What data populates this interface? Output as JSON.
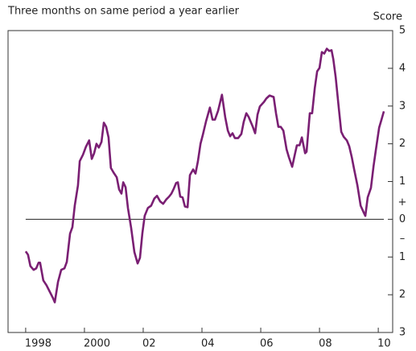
{
  "chart_data": {
    "type": "line",
    "title": "Three months on same period a year earlier",
    "y_axis_label": "Score",
    "annotations": [
      "+",
      "–"
    ],
    "xlim": [
      1997.4,
      2010.49
    ],
    "xticks": [
      {
        "value": 1998,
        "label": "1998"
      },
      {
        "value": 2000,
        "label": "2000"
      },
      {
        "value": 2002,
        "label": "02"
      },
      {
        "value": 2004,
        "label": "04"
      },
      {
        "value": 2006,
        "label": "06"
      },
      {
        "value": 2008,
        "label": "08"
      },
      {
        "value": 2010,
        "label": "10"
      }
    ],
    "ylim": [
      -3,
      5
    ],
    "yticks": [
      5,
      4,
      3,
      2,
      1,
      0,
      {
        "value": -1,
        "label": "1"
      },
      {
        "value": -2,
        "label": "2"
      },
      {
        "value": -3,
        "label": "3"
      }
    ],
    "reference_line": 0,
    "series": [
      {
        "color": "#7a1f73",
        "x": [
          1998.0,
          1998.08,
          1998.16,
          1998.27,
          1998.36,
          1998.44,
          1998.49,
          1998.6,
          1998.71,
          1998.82,
          1998.93,
          1998.99,
          1999.1,
          1999.21,
          1999.32,
          1999.4,
          1999.51,
          1999.59,
          1999.67,
          1999.78,
          1999.84,
          1999.95,
          2000.05,
          2000.16,
          2000.25,
          2000.33,
          2000.41,
          2000.49,
          2000.58,
          2000.66,
          2000.74,
          2000.82,
          2000.9,
          2000.99,
          2001.1,
          2001.18,
          2001.26,
          2001.32,
          2001.4,
          2001.48,
          2001.59,
          2001.7,
          2001.81,
          2001.89,
          2001.97,
          2002.05,
          2002.16,
          2002.27,
          2002.38,
          2002.47,
          2002.58,
          2002.68,
          2002.79,
          2002.88,
          2002.96,
          2003.04,
          2003.12,
          2003.18,
          2003.26,
          2003.34,
          2003.42,
          2003.51,
          2003.59,
          2003.7,
          2003.78,
          2003.86,
          2003.95,
          2004.03,
          2004.14,
          2004.27,
          2004.36,
          2004.44,
          2004.55,
          2004.68,
          2004.79,
          2004.88,
          2004.96,
          2005.04,
          2005.12,
          2005.23,
          2005.34,
          2005.42,
          2005.51,
          2005.59,
          2005.73,
          2005.81,
          2005.89,
          2005.97,
          2006.11,
          2006.19,
          2006.3,
          2006.44,
          2006.52,
          2006.6,
          2006.68,
          2006.77,
          2006.88,
          2006.96,
          2007.07,
          2007.15,
          2007.23,
          2007.32,
          2007.4,
          2007.51,
          2007.56,
          2007.67,
          2007.75,
          2007.84,
          2007.92,
          2008.0,
          2008.08,
          2008.16,
          2008.25,
          2008.33,
          2008.41,
          2008.47,
          2008.55,
          2008.66,
          2008.74,
          2008.82,
          2008.93,
          2009.01,
          2009.1,
          2009.18,
          2009.29,
          2009.4,
          2009.51,
          2009.56,
          2009.64,
          2009.75,
          2009.84,
          2009.92,
          2010.03,
          2010.11,
          2010.19
        ],
        "values": [
          -0.85,
          -0.94,
          -1.24,
          -1.34,
          -1.3,
          -1.15,
          -1.15,
          -1.62,
          -1.75,
          -1.92,
          -2.09,
          -2.2,
          -1.66,
          -1.34,
          -1.3,
          -1.13,
          -0.38,
          -0.21,
          0.36,
          0.9,
          1.54,
          1.71,
          1.92,
          2.09,
          1.6,
          1.75,
          2.0,
          1.9,
          2.05,
          2.56,
          2.45,
          2.17,
          1.36,
          1.24,
          1.11,
          0.79,
          0.68,
          0.98,
          0.85,
          0.3,
          -0.23,
          -0.87,
          -1.17,
          -1.02,
          -0.38,
          0.09,
          0.3,
          0.36,
          0.55,
          0.62,
          0.47,
          0.41,
          0.53,
          0.6,
          0.68,
          0.81,
          0.96,
          0.98,
          0.6,
          0.58,
          0.34,
          0.32,
          1.17,
          1.32,
          1.21,
          1.53,
          2.0,
          2.24,
          2.6,
          2.96,
          2.64,
          2.64,
          2.88,
          3.3,
          2.71,
          2.35,
          2.2,
          2.28,
          2.15,
          2.15,
          2.26,
          2.58,
          2.81,
          2.71,
          2.45,
          2.28,
          2.77,
          2.99,
          3.11,
          3.2,
          3.28,
          3.24,
          2.81,
          2.45,
          2.45,
          2.35,
          1.85,
          1.64,
          1.39,
          1.68,
          1.96,
          1.96,
          2.17,
          1.75,
          1.79,
          2.81,
          2.81,
          3.48,
          3.92,
          4.01,
          4.43,
          4.39,
          4.52,
          4.46,
          4.48,
          4.24,
          3.77,
          2.92,
          2.32,
          2.19,
          2.09,
          1.94,
          1.64,
          1.32,
          0.9,
          0.36,
          0.17,
          0.09,
          0.58,
          0.83,
          1.41,
          1.85,
          2.43,
          2.64,
          2.86
        ]
      }
    ]
  }
}
